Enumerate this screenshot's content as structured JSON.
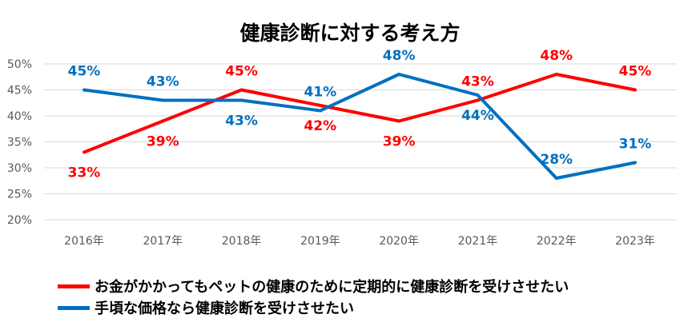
{
  "chart_data": {
    "type": "line",
    "title": "健康診断に対する考え方",
    "categories": [
      "2016年",
      "2017年",
      "2018年",
      "2019年",
      "2020年",
      "2021年",
      "2022年",
      "2023年"
    ],
    "ylim": [
      20,
      50
    ],
    "yticks": [
      "20%",
      "25%",
      "30%",
      "35%",
      "40%",
      "45%",
      "50%"
    ],
    "grid": true,
    "legend_position": "bottom",
    "series": [
      {
        "name": "お金がかかってもペットの健康のために定期的に健康診断を受けさせたい",
        "color": "#FF0000",
        "values": [
          33,
          39,
          45,
          42,
          39,
          43,
          48,
          45
        ],
        "labels": [
          "33%",
          "39%",
          "45%",
          "42%",
          "39%",
          "43%",
          "48%",
          "45%"
        ]
      },
      {
        "name": "手頃な価格なら健康診断を受けさせたい",
        "color": "#0070C0",
        "values": [
          45,
          43,
          43,
          41,
          48,
          44,
          28,
          31
        ],
        "labels": [
          "45%",
          "43%",
          "43%",
          "41%",
          "48%",
          "44%",
          "28%",
          "31%"
        ]
      }
    ]
  }
}
